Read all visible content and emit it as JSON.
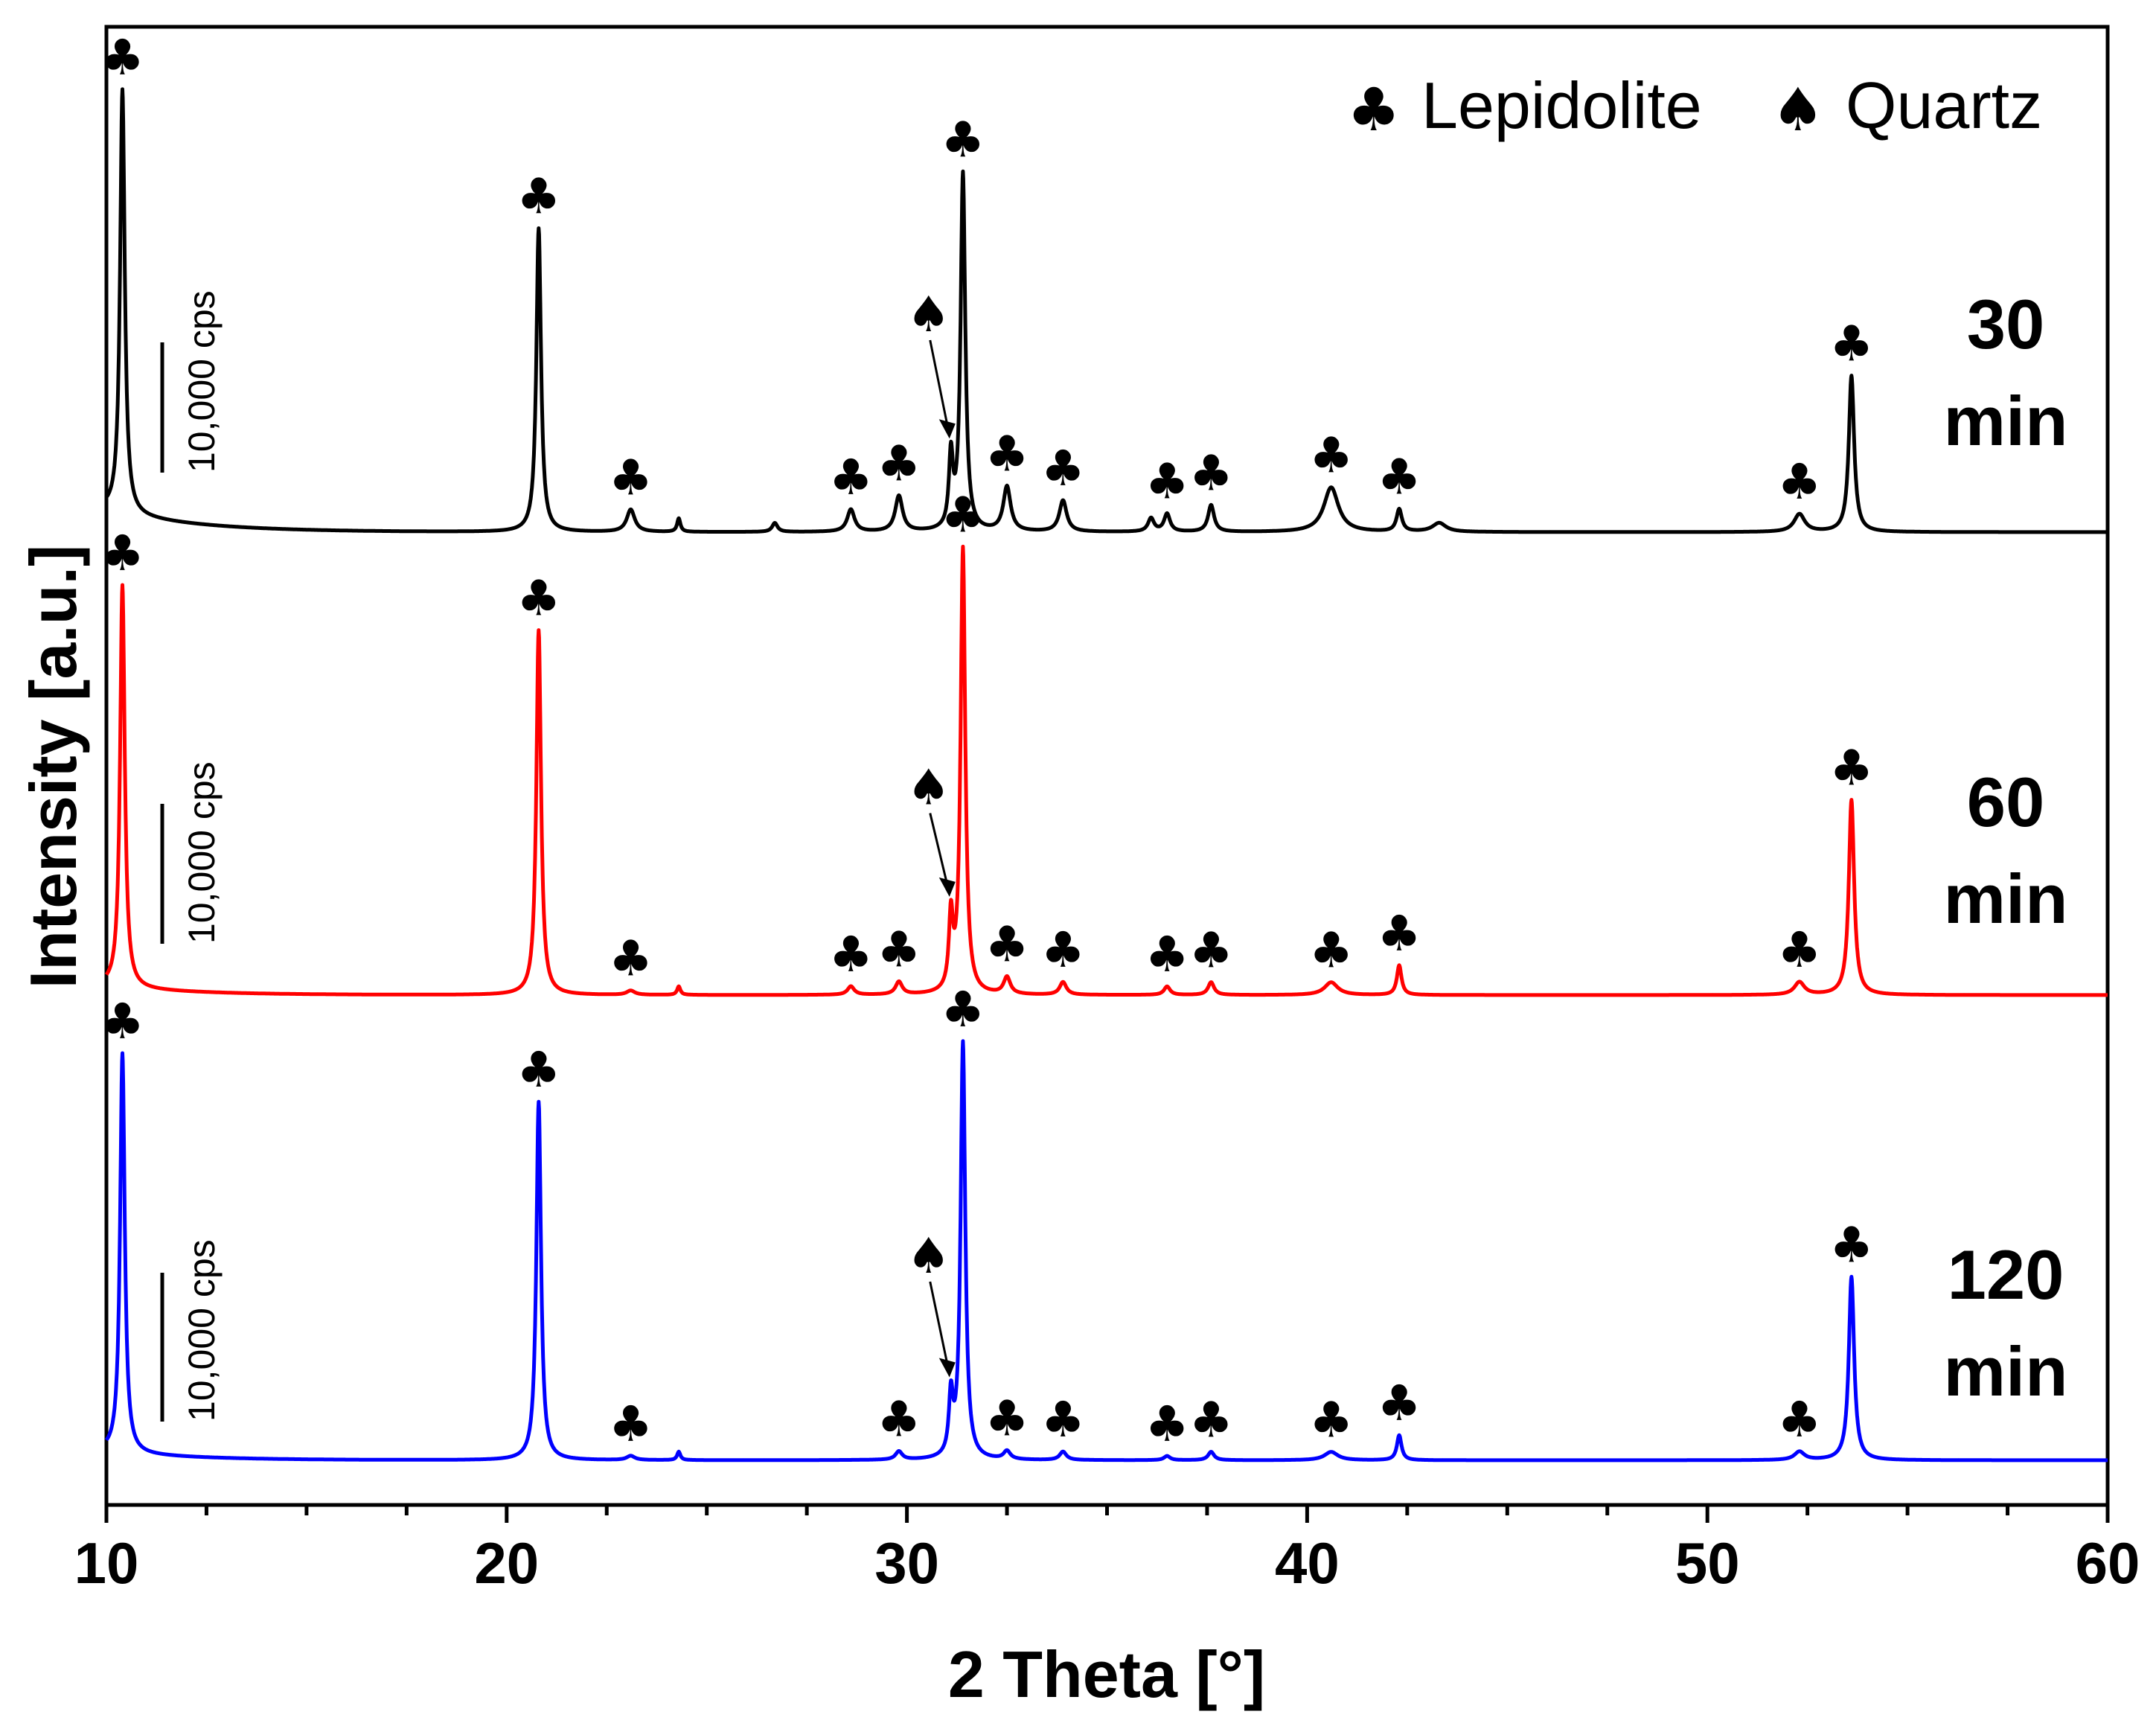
{
  "chart_data": {
    "type": "line",
    "xlabel": "2 Theta [°]",
    "ylabel": "Intensity [a.u.]",
    "xlim": [
      10,
      60
    ],
    "xticks": [
      10,
      20,
      30,
      40,
      50,
      60
    ],
    "tick_labels": [
      "10",
      "20",
      "30",
      "40",
      "50",
      "60"
    ],
    "y_ticks_shown": false,
    "legend": {
      "placement": "top-right",
      "entries": [
        {
          "symbol": "♣",
          "label": "Lepidolite"
        },
        {
          "symbol": "♠",
          "label": "Quartz"
        }
      ]
    },
    "scale_bar_label": "10,000 cps",
    "lepidolite_peaks_2theta": [
      10.4,
      20.8,
      23.1,
      28.6,
      29.8,
      31.4,
      32.5,
      33.9,
      36.5,
      37.6,
      40.6,
      42.3,
      52.3,
      53.6
    ],
    "quartz_peak_2theta": 31.1,
    "series": [
      {
        "name": "30 min",
        "label_line1": "30",
        "label_line2": "min",
        "color": "#000000",
        "stack_order": 1,
        "baseline_start_norm": 0.05,
        "baseline_end_norm": 0.0,
        "peaks": [
          {
            "x": 10.4,
            "h": 0.95,
            "w": 0.07,
            "m": "club"
          },
          {
            "x": 20.8,
            "h": 0.68,
            "w": 0.07,
            "m": "club"
          },
          {
            "x": 23.1,
            "h": 0.05,
            "w": 0.12,
            "m": "club"
          },
          {
            "x": 24.3,
            "h": 0.03,
            "w": 0.05
          },
          {
            "x": 26.7,
            "h": 0.02,
            "w": 0.08
          },
          {
            "x": 28.6,
            "h": 0.05,
            "w": 0.11,
            "m": "club"
          },
          {
            "x": 29.8,
            "h": 0.08,
            "w": 0.11,
            "m": "club"
          },
          {
            "x": 31.1,
            "h": 0.16,
            "w": 0.06,
            "m": "spade"
          },
          {
            "x": 31.4,
            "h": 0.8,
            "w": 0.07,
            "m": "club"
          },
          {
            "x": 32.5,
            "h": 0.1,
            "w": 0.11,
            "m": "club"
          },
          {
            "x": 33.9,
            "h": 0.07,
            "w": 0.11,
            "m": "club"
          },
          {
            "x": 36.1,
            "h": 0.03,
            "w": 0.09
          },
          {
            "x": 36.5,
            "h": 0.04,
            "w": 0.09,
            "m": "club"
          },
          {
            "x": 37.6,
            "h": 0.06,
            "w": 0.09,
            "m": "club"
          },
          {
            "x": 40.6,
            "h": 0.1,
            "w": 0.22,
            "m": "club"
          },
          {
            "x": 42.3,
            "h": 0.05,
            "w": 0.08,
            "m": "club"
          },
          {
            "x": 43.3,
            "h": 0.02,
            "w": 0.2
          },
          {
            "x": 52.3,
            "h": 0.04,
            "w": 0.16,
            "m": "club"
          },
          {
            "x": 53.6,
            "h": 0.35,
            "w": 0.08,
            "m": "club"
          }
        ]
      },
      {
        "name": "60 min",
        "label_line1": "60",
        "label_line2": "min",
        "color": "#ff0000",
        "stack_order": 2,
        "baseline_start_norm": 0.02,
        "baseline_end_norm": 0.0,
        "peaks": [
          {
            "x": 10.4,
            "h": 0.95,
            "w": 0.07,
            "m": "club"
          },
          {
            "x": 20.8,
            "h": 0.86,
            "w": 0.07,
            "m": "club"
          },
          {
            "x": 23.1,
            "h": 0.01,
            "w": 0.12,
            "m": "club"
          },
          {
            "x": 24.3,
            "h": 0.02,
            "w": 0.05
          },
          {
            "x": 28.6,
            "h": 0.02,
            "w": 0.1,
            "m": "club"
          },
          {
            "x": 29.8,
            "h": 0.03,
            "w": 0.1,
            "m": "club"
          },
          {
            "x": 31.1,
            "h": 0.17,
            "w": 0.06,
            "m": "spade"
          },
          {
            "x": 31.4,
            "h": 1.05,
            "w": 0.07,
            "m": "club"
          },
          {
            "x": 32.5,
            "h": 0.04,
            "w": 0.1,
            "m": "club"
          },
          {
            "x": 33.9,
            "h": 0.03,
            "w": 0.1,
            "m": "club"
          },
          {
            "x": 36.5,
            "h": 0.02,
            "w": 0.09,
            "m": "club"
          },
          {
            "x": 37.6,
            "h": 0.03,
            "w": 0.09,
            "m": "club"
          },
          {
            "x": 40.6,
            "h": 0.03,
            "w": 0.2,
            "m": "club"
          },
          {
            "x": 42.3,
            "h": 0.07,
            "w": 0.07,
            "m": "club"
          },
          {
            "x": 52.3,
            "h": 0.03,
            "w": 0.15,
            "m": "club"
          },
          {
            "x": 53.6,
            "h": 0.46,
            "w": 0.08,
            "m": "club"
          }
        ]
      },
      {
        "name": "120 min",
        "label_line1": "120",
        "label_line2": "min",
        "color": "#0000ff",
        "stack_order": 3,
        "baseline_start_norm": 0.02,
        "baseline_end_norm": 0.0,
        "peaks": [
          {
            "x": 10.4,
            "h": 0.96,
            "w": 0.07,
            "m": "club"
          },
          {
            "x": 20.8,
            "h": 0.86,
            "w": 0.07,
            "m": "club"
          },
          {
            "x": 23.1,
            "h": 0.01,
            "w": 0.12,
            "m": "club"
          },
          {
            "x": 24.3,
            "h": 0.02,
            "w": 0.05
          },
          {
            "x": 29.8,
            "h": 0.02,
            "w": 0.1,
            "m": "club"
          },
          {
            "x": 31.1,
            "h": 0.14,
            "w": 0.06,
            "m": "spade"
          },
          {
            "x": 31.4,
            "h": 1.0,
            "w": 0.07,
            "m": "club"
          },
          {
            "x": 32.5,
            "h": 0.02,
            "w": 0.1,
            "m": "club"
          },
          {
            "x": 33.9,
            "h": 0.02,
            "w": 0.1,
            "m": "club"
          },
          {
            "x": 36.5,
            "h": 0.01,
            "w": 0.09,
            "m": "club"
          },
          {
            "x": 37.6,
            "h": 0.02,
            "w": 0.09,
            "m": "club"
          },
          {
            "x": 40.6,
            "h": 0.02,
            "w": 0.2,
            "m": "club"
          },
          {
            "x": 42.3,
            "h": 0.06,
            "w": 0.07,
            "m": "club"
          },
          {
            "x": 52.3,
            "h": 0.02,
            "w": 0.15,
            "m": "club"
          },
          {
            "x": 53.6,
            "h": 0.44,
            "w": 0.08,
            "m": "club"
          }
        ]
      }
    ]
  }
}
